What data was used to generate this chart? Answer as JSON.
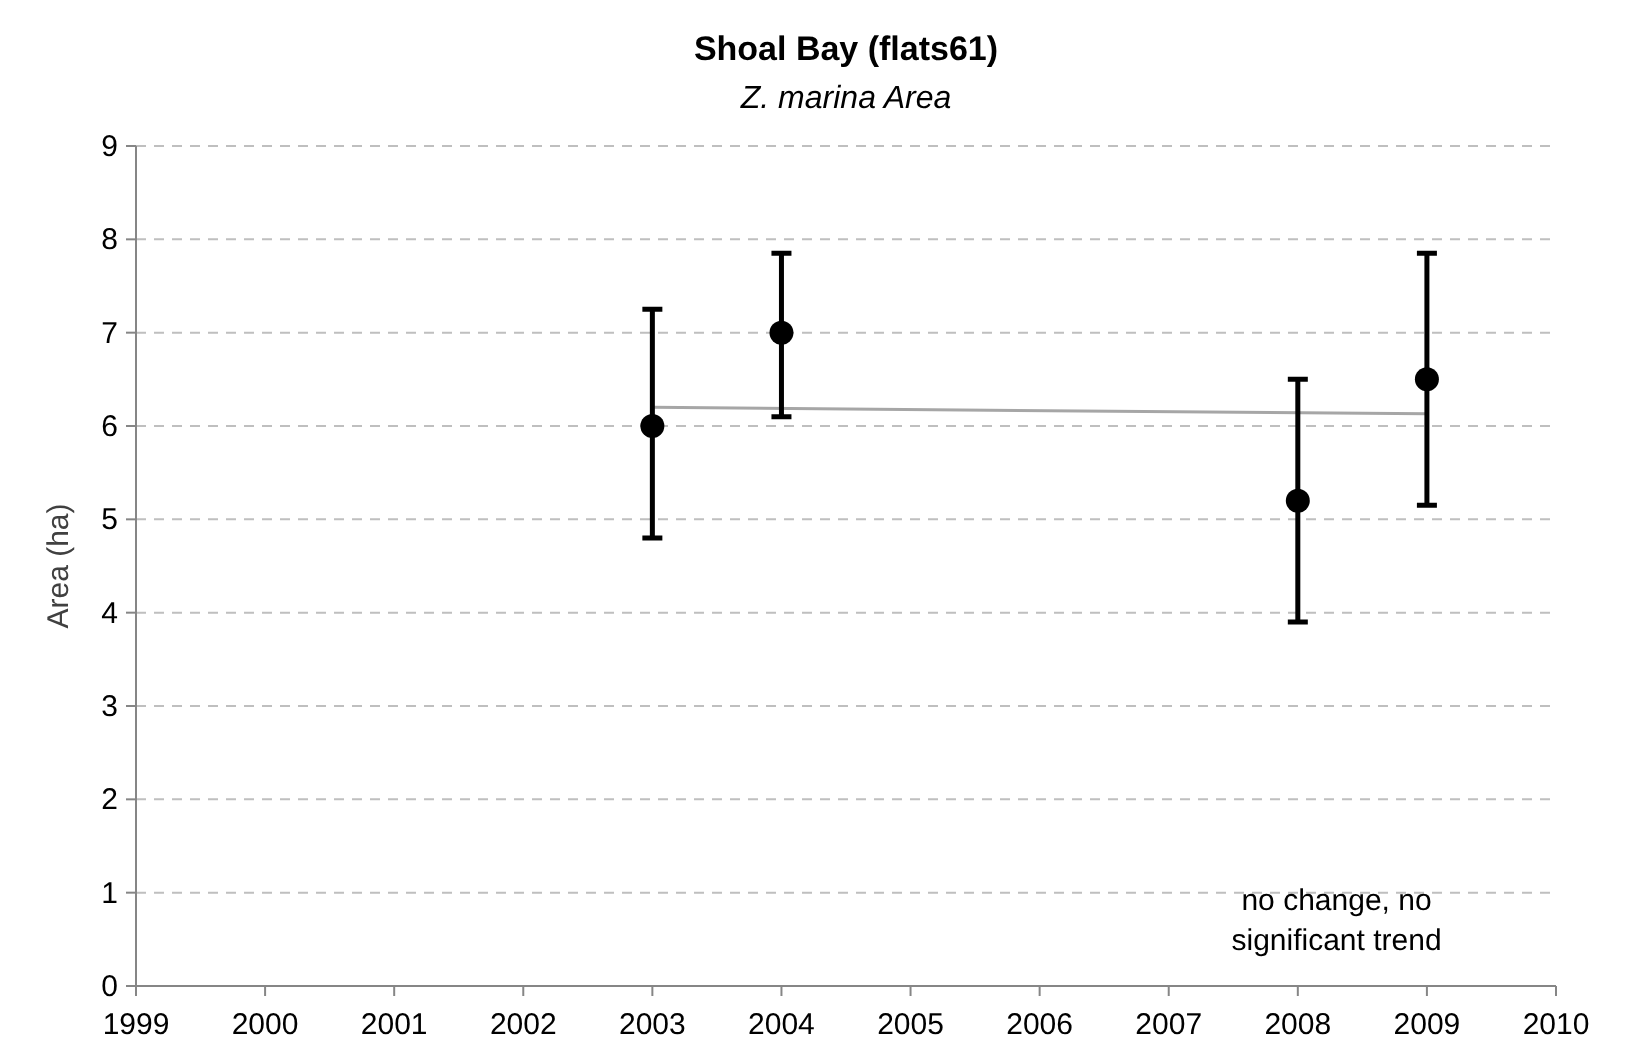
{
  "chart_data": {
    "type": "scatter",
    "title": "Shoal Bay (flats61)",
    "subtitle": "Z. marina Area",
    "ylabel": "Area  (ha)",
    "xlim": [
      1999,
      2010
    ],
    "xticks": [
      1999,
      2000,
      2001,
      2002,
      2003,
      2004,
      2005,
      2006,
      2007,
      2008,
      2009,
      2010
    ],
    "ylim": [
      0,
      9
    ],
    "yticks": [
      0,
      1,
      2,
      3,
      4,
      5,
      6,
      7,
      8,
      9
    ],
    "grid": "y",
    "series": [
      {
        "color": "#000000",
        "marker": "circle",
        "x": [
          2003,
          2004,
          2008,
          2009
        ],
        "values": [
          6.0,
          7.0,
          5.2,
          6.5
        ],
        "errors": [
          [
            4.8,
            7.25
          ],
          [
            6.1,
            7.85
          ],
          [
            3.9,
            6.5
          ],
          [
            5.15,
            7.85
          ]
        ]
      },
      {
        "type": "line",
        "color": "#a6a6a6",
        "marker": "none",
        "x": [
          2003,
          2009
        ],
        "values": [
          6.2,
          6.13
        ]
      }
    ],
    "annotations": [
      "no change, no significant trend"
    ]
  }
}
